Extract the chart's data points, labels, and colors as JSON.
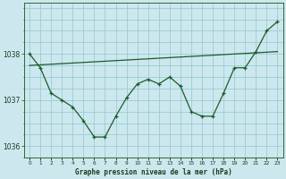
{
  "title": "Graphe pression niveau de la mer (hPa)",
  "background_color": "#cce8ee",
  "grid_color": "#99ccd4",
  "line_color": "#1a5c2a",
  "x_labels": [
    "0",
    "1",
    "2",
    "3",
    "4",
    "5",
    "6",
    "7",
    "8",
    "9",
    "10",
    "11",
    "12",
    "13",
    "14",
    "15",
    "16",
    "17",
    "18",
    "19",
    "20",
    "21",
    "22",
    "23"
  ],
  "ylim": [
    1035.75,
    1039.1
  ],
  "yticks": [
    1036,
    1037,
    1038
  ],
  "main_series": [
    1038.0,
    1037.7,
    1037.15,
    1037.0,
    1036.85,
    1036.55,
    1036.2,
    1036.2,
    1036.65,
    1037.05,
    1037.35,
    1037.45,
    1037.35,
    1037.5,
    1037.3,
    1036.75,
    1036.65,
    1036.65,
    1037.15,
    1037.7,
    1037.7,
    1038.05,
    1038.5,
    1038.7
  ],
  "trend_series_endpoints": [
    1037.75,
    1038.05
  ],
  "figsize": [
    3.2,
    2.0
  ],
  "dpi": 100
}
